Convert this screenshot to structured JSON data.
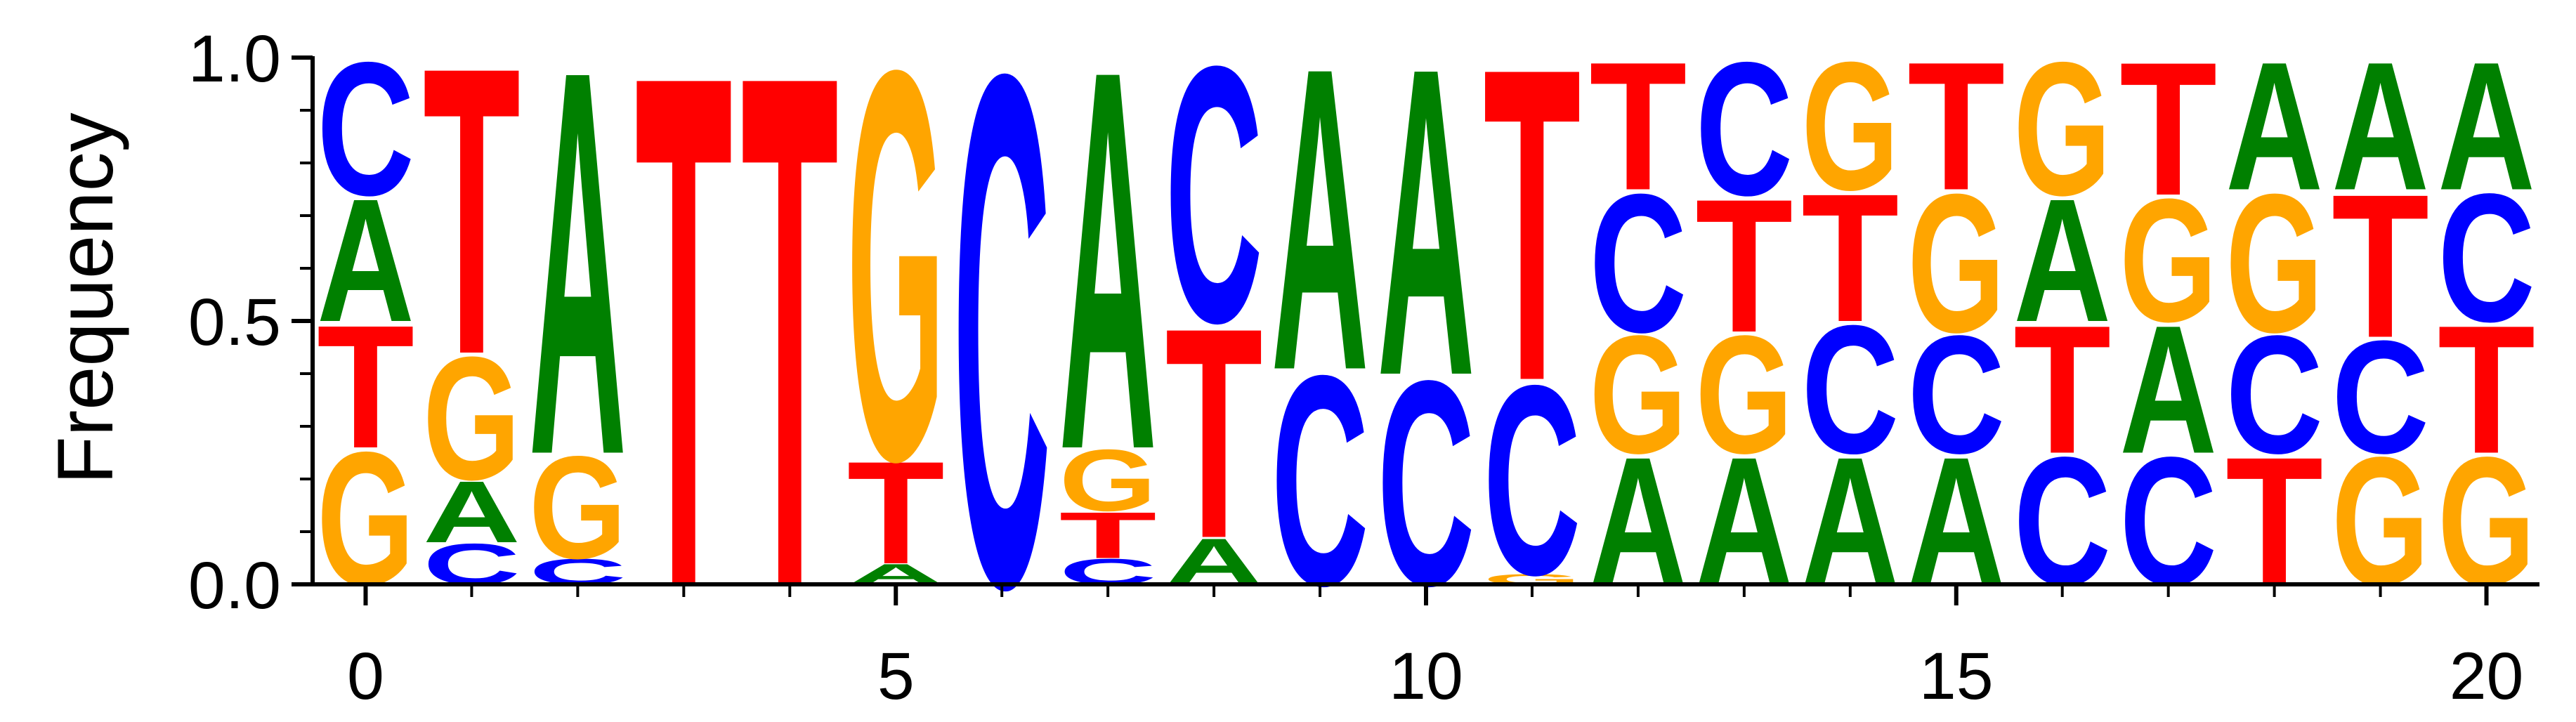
{
  "chart_data": {
    "type": "sequence-logo",
    "ylabel": "Frequency",
    "xlabel": "",
    "ylim": [
      0,
      1
    ],
    "xlim": [
      -0.5,
      20.5
    ],
    "x_ticks": [
      0,
      5,
      10,
      15,
      20
    ],
    "x_tick_labels": [
      "0",
      "5",
      "10",
      "15",
      "20"
    ],
    "y_ticks": [
      0.0,
      0.5,
      1.0
    ],
    "y_tick_labels": [
      "0.0",
      "0.5",
      "1.0"
    ],
    "y_minor_ticks": [
      0.1,
      0.2,
      0.3,
      0.4,
      0.6,
      0.7,
      0.8,
      0.9
    ],
    "colors": {
      "A": "#008000",
      "C": "#0000ff",
      "G": "#ffa500",
      "T": "#ff0000"
    },
    "positions": [
      {
        "x": 0,
        "stack": [
          {
            "letter": "G",
            "value": 0.26
          },
          {
            "letter": "T",
            "value": 0.24
          },
          {
            "letter": "A",
            "value": 0.24
          },
          {
            "letter": "C",
            "value": 0.26
          }
        ]
      },
      {
        "x": 1,
        "stack": [
          {
            "letter": "C",
            "value": 0.08
          },
          {
            "letter": "A",
            "value": 0.12
          },
          {
            "letter": "G",
            "value": 0.24
          },
          {
            "letter": "T",
            "value": 0.56
          }
        ]
      },
      {
        "x": 2,
        "stack": [
          {
            "letter": "C",
            "value": 0.05
          },
          {
            "letter": "G",
            "value": 0.2
          },
          {
            "letter": "A",
            "value": 0.75
          }
        ]
      },
      {
        "x": 3,
        "stack": [
          {
            "letter": "T",
            "value": 1.0
          }
        ]
      },
      {
        "x": 4,
        "stack": [
          {
            "letter": "T",
            "value": 1.0
          }
        ]
      },
      {
        "x": 5,
        "stack": [
          {
            "letter": "A",
            "value": 0.04
          },
          {
            "letter": "T",
            "value": 0.2
          },
          {
            "letter": "G",
            "value": 0.76
          }
        ]
      },
      {
        "x": 6,
        "stack": [
          {
            "letter": "C",
            "value": 1.0
          }
        ]
      },
      {
        "x": 7,
        "stack": [
          {
            "letter": "C",
            "value": 0.05
          },
          {
            "letter": "T",
            "value": 0.09
          },
          {
            "letter": "G",
            "value": 0.12
          },
          {
            "letter": "A",
            "value": 0.74
          }
        ]
      },
      {
        "x": 8,
        "stack": [
          {
            "letter": "A",
            "value": 0.09
          },
          {
            "letter": "T",
            "value": 0.41
          },
          {
            "letter": "C",
            "value": 0.5
          }
        ]
      },
      {
        "x": 9,
        "stack": [
          {
            "letter": "C",
            "value": 0.41
          },
          {
            "letter": "A",
            "value": 0.59
          }
        ]
      },
      {
        "x": 10,
        "stack": [
          {
            "letter": "C",
            "value": 0.4
          },
          {
            "letter": "A",
            "value": 0.6
          }
        ]
      },
      {
        "x": 11,
        "stack": [
          {
            "letter": "G",
            "value": 0.02
          },
          {
            "letter": "C",
            "value": 0.37
          },
          {
            "letter": "T",
            "value": 0.61
          }
        ]
      },
      {
        "x": 12,
        "stack": [
          {
            "letter": "A",
            "value": 0.25
          },
          {
            "letter": "G",
            "value": 0.23
          },
          {
            "letter": "C",
            "value": 0.27
          },
          {
            "letter": "T",
            "value": 0.25
          }
        ]
      },
      {
        "x": 13,
        "stack": [
          {
            "letter": "A",
            "value": 0.25
          },
          {
            "letter": "G",
            "value": 0.23
          },
          {
            "letter": "T",
            "value": 0.26
          },
          {
            "letter": "C",
            "value": 0.26
          }
        ]
      },
      {
        "x": 14,
        "stack": [
          {
            "letter": "A",
            "value": 0.25
          },
          {
            "letter": "C",
            "value": 0.25
          },
          {
            "letter": "T",
            "value": 0.25
          },
          {
            "letter": "G",
            "value": 0.25
          }
        ]
      },
      {
        "x": 15,
        "stack": [
          {
            "letter": "A",
            "value": 0.25
          },
          {
            "letter": "C",
            "value": 0.23
          },
          {
            "letter": "G",
            "value": 0.27
          },
          {
            "letter": "T",
            "value": 0.25
          }
        ]
      },
      {
        "x": 16,
        "stack": [
          {
            "letter": "C",
            "value": 0.25
          },
          {
            "letter": "T",
            "value": 0.25
          },
          {
            "letter": "A",
            "value": 0.24
          },
          {
            "letter": "G",
            "value": 0.26
          }
        ]
      },
      {
        "x": 17,
        "stack": [
          {
            "letter": "C",
            "value": 0.25
          },
          {
            "letter": "A",
            "value": 0.25
          },
          {
            "letter": "G",
            "value": 0.24
          },
          {
            "letter": "T",
            "value": 0.26
          }
        ]
      },
      {
        "x": 18,
        "stack": [
          {
            "letter": "T",
            "value": 0.25
          },
          {
            "letter": "C",
            "value": 0.23
          },
          {
            "letter": "G",
            "value": 0.27
          },
          {
            "letter": "A",
            "value": 0.25
          }
        ]
      },
      {
        "x": 19,
        "stack": [
          {
            "letter": "G",
            "value": 0.25
          },
          {
            "letter": "C",
            "value": 0.22
          },
          {
            "letter": "T",
            "value": 0.28
          },
          {
            "letter": "A",
            "value": 0.25
          }
        ]
      },
      {
        "x": 20,
        "stack": [
          {
            "letter": "G",
            "value": 0.25
          },
          {
            "letter": "T",
            "value": 0.25
          },
          {
            "letter": "C",
            "value": 0.25
          },
          {
            "letter": "A",
            "value": 0.25
          }
        ]
      }
    ]
  }
}
